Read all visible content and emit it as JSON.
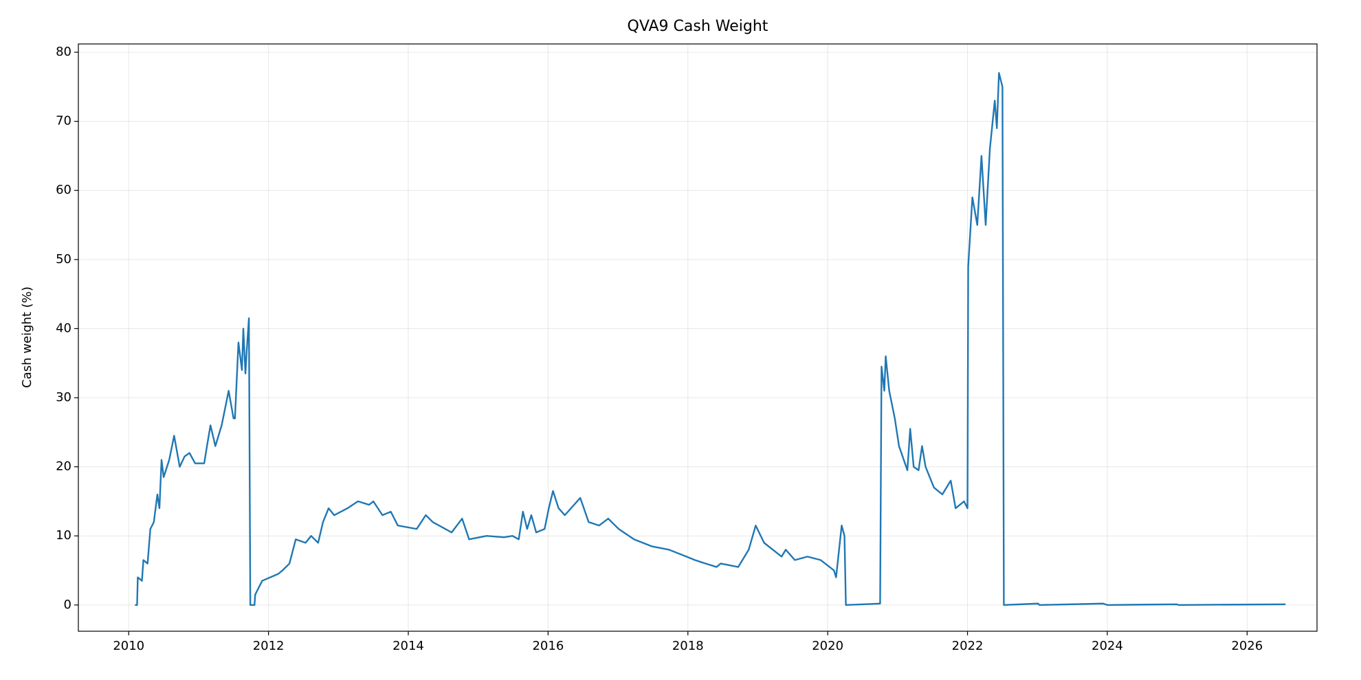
{
  "chart_data": {
    "type": "line",
    "title": "QVA9 Cash Weight",
    "y_label": "Cash weight (%)",
    "x": [
      2010.09,
      2010.12,
      2010.13,
      2010.19,
      2010.21,
      2010.27,
      2010.31,
      2010.36,
      2010.41,
      2010.44,
      2010.47,
      2010.5,
      2010.58,
      2010.65,
      2010.73,
      2010.8,
      2010.87,
      2010.95,
      2011.08,
      2011.12,
      2011.17,
      2011.24,
      2011.33,
      2011.43,
      2011.5,
      2011.52,
      2011.57,
      2011.62,
      2011.64,
      2011.67,
      2011.69,
      2011.72,
      2011.74,
      2011.8,
      2011.81,
      2011.91,
      2012.14,
      2012.2,
      2012.3,
      2012.39,
      2012.53,
      2012.61,
      2012.71,
      2012.78,
      2012.86,
      2012.94,
      2013.13,
      2013.28,
      2013.44,
      2013.5,
      2013.63,
      2013.75,
      2013.85,
      2014.12,
      2014.25,
      2014.35,
      2014.62,
      2014.77,
      2014.87,
      2015.12,
      2015.37,
      2015.49,
      2015.58,
      2015.64,
      2015.7,
      2015.76,
      2015.83,
      2015.95,
      2016.01,
      2016.07,
      2016.15,
      2016.24,
      2016.46,
      2016.58,
      2016.73,
      2016.86,
      2017.01,
      2017.23,
      2017.48,
      2017.73,
      2017.98,
      2018.1,
      2018.25,
      2018.41,
      2018.47,
      2018.72,
      2018.87,
      2018.97,
      2019.09,
      2019.34,
      2019.4,
      2019.53,
      2019.71,
      2019.9,
      2020.09,
      2020.12,
      2020.2,
      2020.24,
      2020.26,
      2020.75,
      2020.77,
      2020.81,
      2020.83,
      2020.88,
      2020.96,
      2021.02,
      2021.14,
      2021.18,
      2021.23,
      2021.3,
      2021.35,
      2021.4,
      2021.52,
      2021.64,
      2021.76,
      2021.83,
      2021.95,
      2022.0,
      2022.01,
      2022.07,
      2022.14,
      2022.2,
      2022.26,
      2022.32,
      2022.36,
      2022.39,
      2022.42,
      2022.45,
      2022.5,
      2022.52,
      2023.01,
      2023.03,
      2023.94,
      2024.0,
      2024.99,
      2025.02,
      2026.55
    ],
    "series": [
      {
        "name": "QVA9",
        "color": "#1f77b4",
        "values": [
          0,
          0,
          4,
          3.5,
          6.5,
          6,
          11,
          12,
          16,
          14,
          21,
          18.5,
          21,
          24.5,
          20,
          21.5,
          22,
          20.5,
          20.5,
          23,
          26,
          23,
          26,
          31,
          27,
          27,
          38,
          34,
          40,
          33.5,
          37,
          41.5,
          0,
          0,
          1.5,
          3.5,
          4.5,
          5,
          6,
          9.5,
          9,
          10,
          9,
          12,
          14,
          13,
          14,
          15,
          14.5,
          15,
          13,
          13.5,
          11.5,
          11,
          13,
          12,
          10.5,
          12.5,
          9.5,
          10,
          9.8,
          10,
          9.5,
          13.5,
          11,
          13,
          10.5,
          11,
          14,
          16.5,
          14,
          13,
          15.5,
          12,
          11.5,
          12.5,
          11,
          9.5,
          8.5,
          8,
          7,
          6.5,
          6,
          5.5,
          6,
          5.5,
          8,
          11.5,
          9,
          7,
          8,
          6.5,
          7,
          6.5,
          5,
          4,
          11.5,
          10,
          0,
          0.2,
          34.5,
          31,
          36,
          31,
          27,
          23,
          19.5,
          25.5,
          20,
          19.5,
          23,
          20,
          17,
          16,
          18,
          14,
          15,
          14,
          49,
          59,
          55,
          65,
          55,
          66,
          70,
          73,
          69,
          77,
          75,
          0,
          0.2,
          0,
          0.2,
          0,
          0.1,
          0,
          0.1
        ]
      }
    ],
    "xlim": [
      2009.28,
      2027.0
    ],
    "xticks": [
      2010,
      2012,
      2014,
      2016,
      2018,
      2020,
      2022,
      2024,
      2026
    ],
    "ylim": [
      -3.8,
      81.2
    ],
    "yticks": [
      0,
      10,
      20,
      30,
      40,
      50,
      60,
      70,
      80
    ],
    "grid": true
  }
}
